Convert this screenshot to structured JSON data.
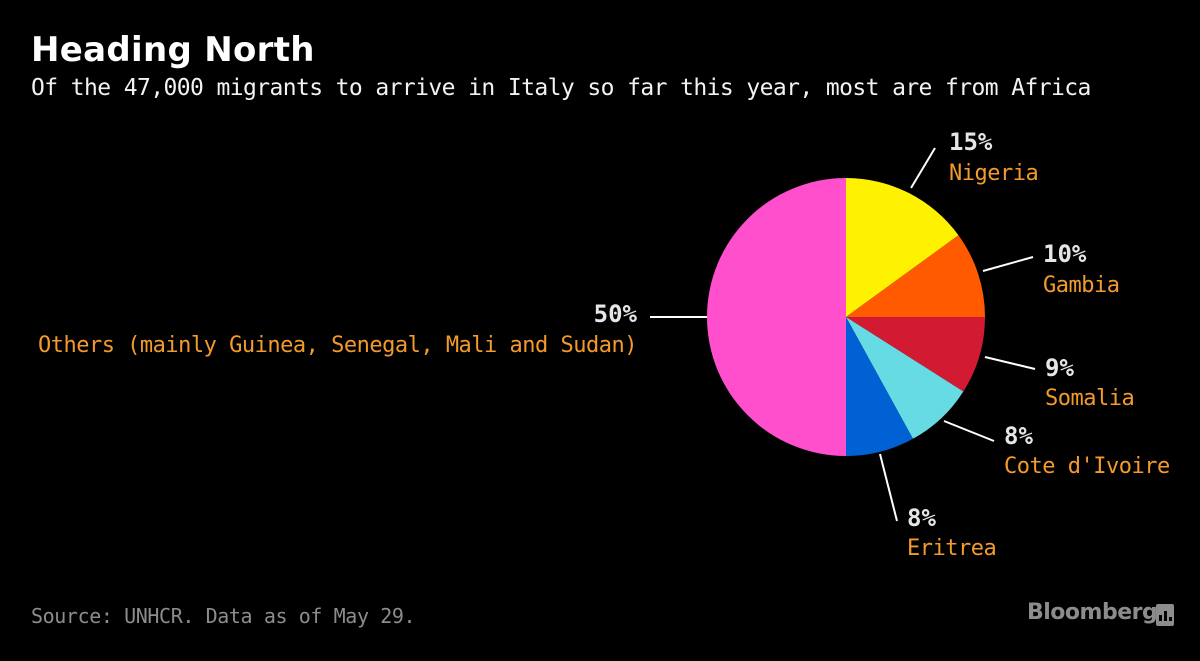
{
  "header": {
    "title": "Heading North",
    "subtitle": "Of the 47,000 migrants to arrive in Italy so far this year, most are from Africa"
  },
  "footer": {
    "source": "Source: UNHCR. Data as of May 29.",
    "brand": "Bloomberg",
    "brand_icon": "bloomberg-terminal-icon"
  },
  "colors": {
    "background": "#000000",
    "label_text": "#f39a2c",
    "pct_text": "#e6e6e6",
    "leader_line": "#ffffff"
  },
  "chart_data": {
    "type": "pie",
    "title": "Heading North",
    "subtitle": "Of the 47,000 migrants to arrive in Italy so far this year, most are from Africa",
    "total_migrants": 47000,
    "start": "12 o'clock, clockwise",
    "slices": [
      {
        "label": "Nigeria",
        "value": 15,
        "pct_label": "15%",
        "color": "#fff200"
      },
      {
        "label": "Gambia",
        "value": 10,
        "pct_label": "10%",
        "color": "#ff5a00"
      },
      {
        "label": "Somalia",
        "value": 9,
        "pct_label": "9%",
        "color": "#d21a33"
      },
      {
        "label": "Cote d'Ivoire",
        "value": 8,
        "pct_label": "8%",
        "color": "#66dbe4"
      },
      {
        "label": "Eritrea",
        "value": 8,
        "pct_label": "8%",
        "color": "#0061d4"
      },
      {
        "label": "Others (mainly Guinea, Senegal, Mali and Sudan)",
        "value": 50,
        "pct_label": "50%",
        "color": "#ff4fcc"
      }
    ]
  }
}
